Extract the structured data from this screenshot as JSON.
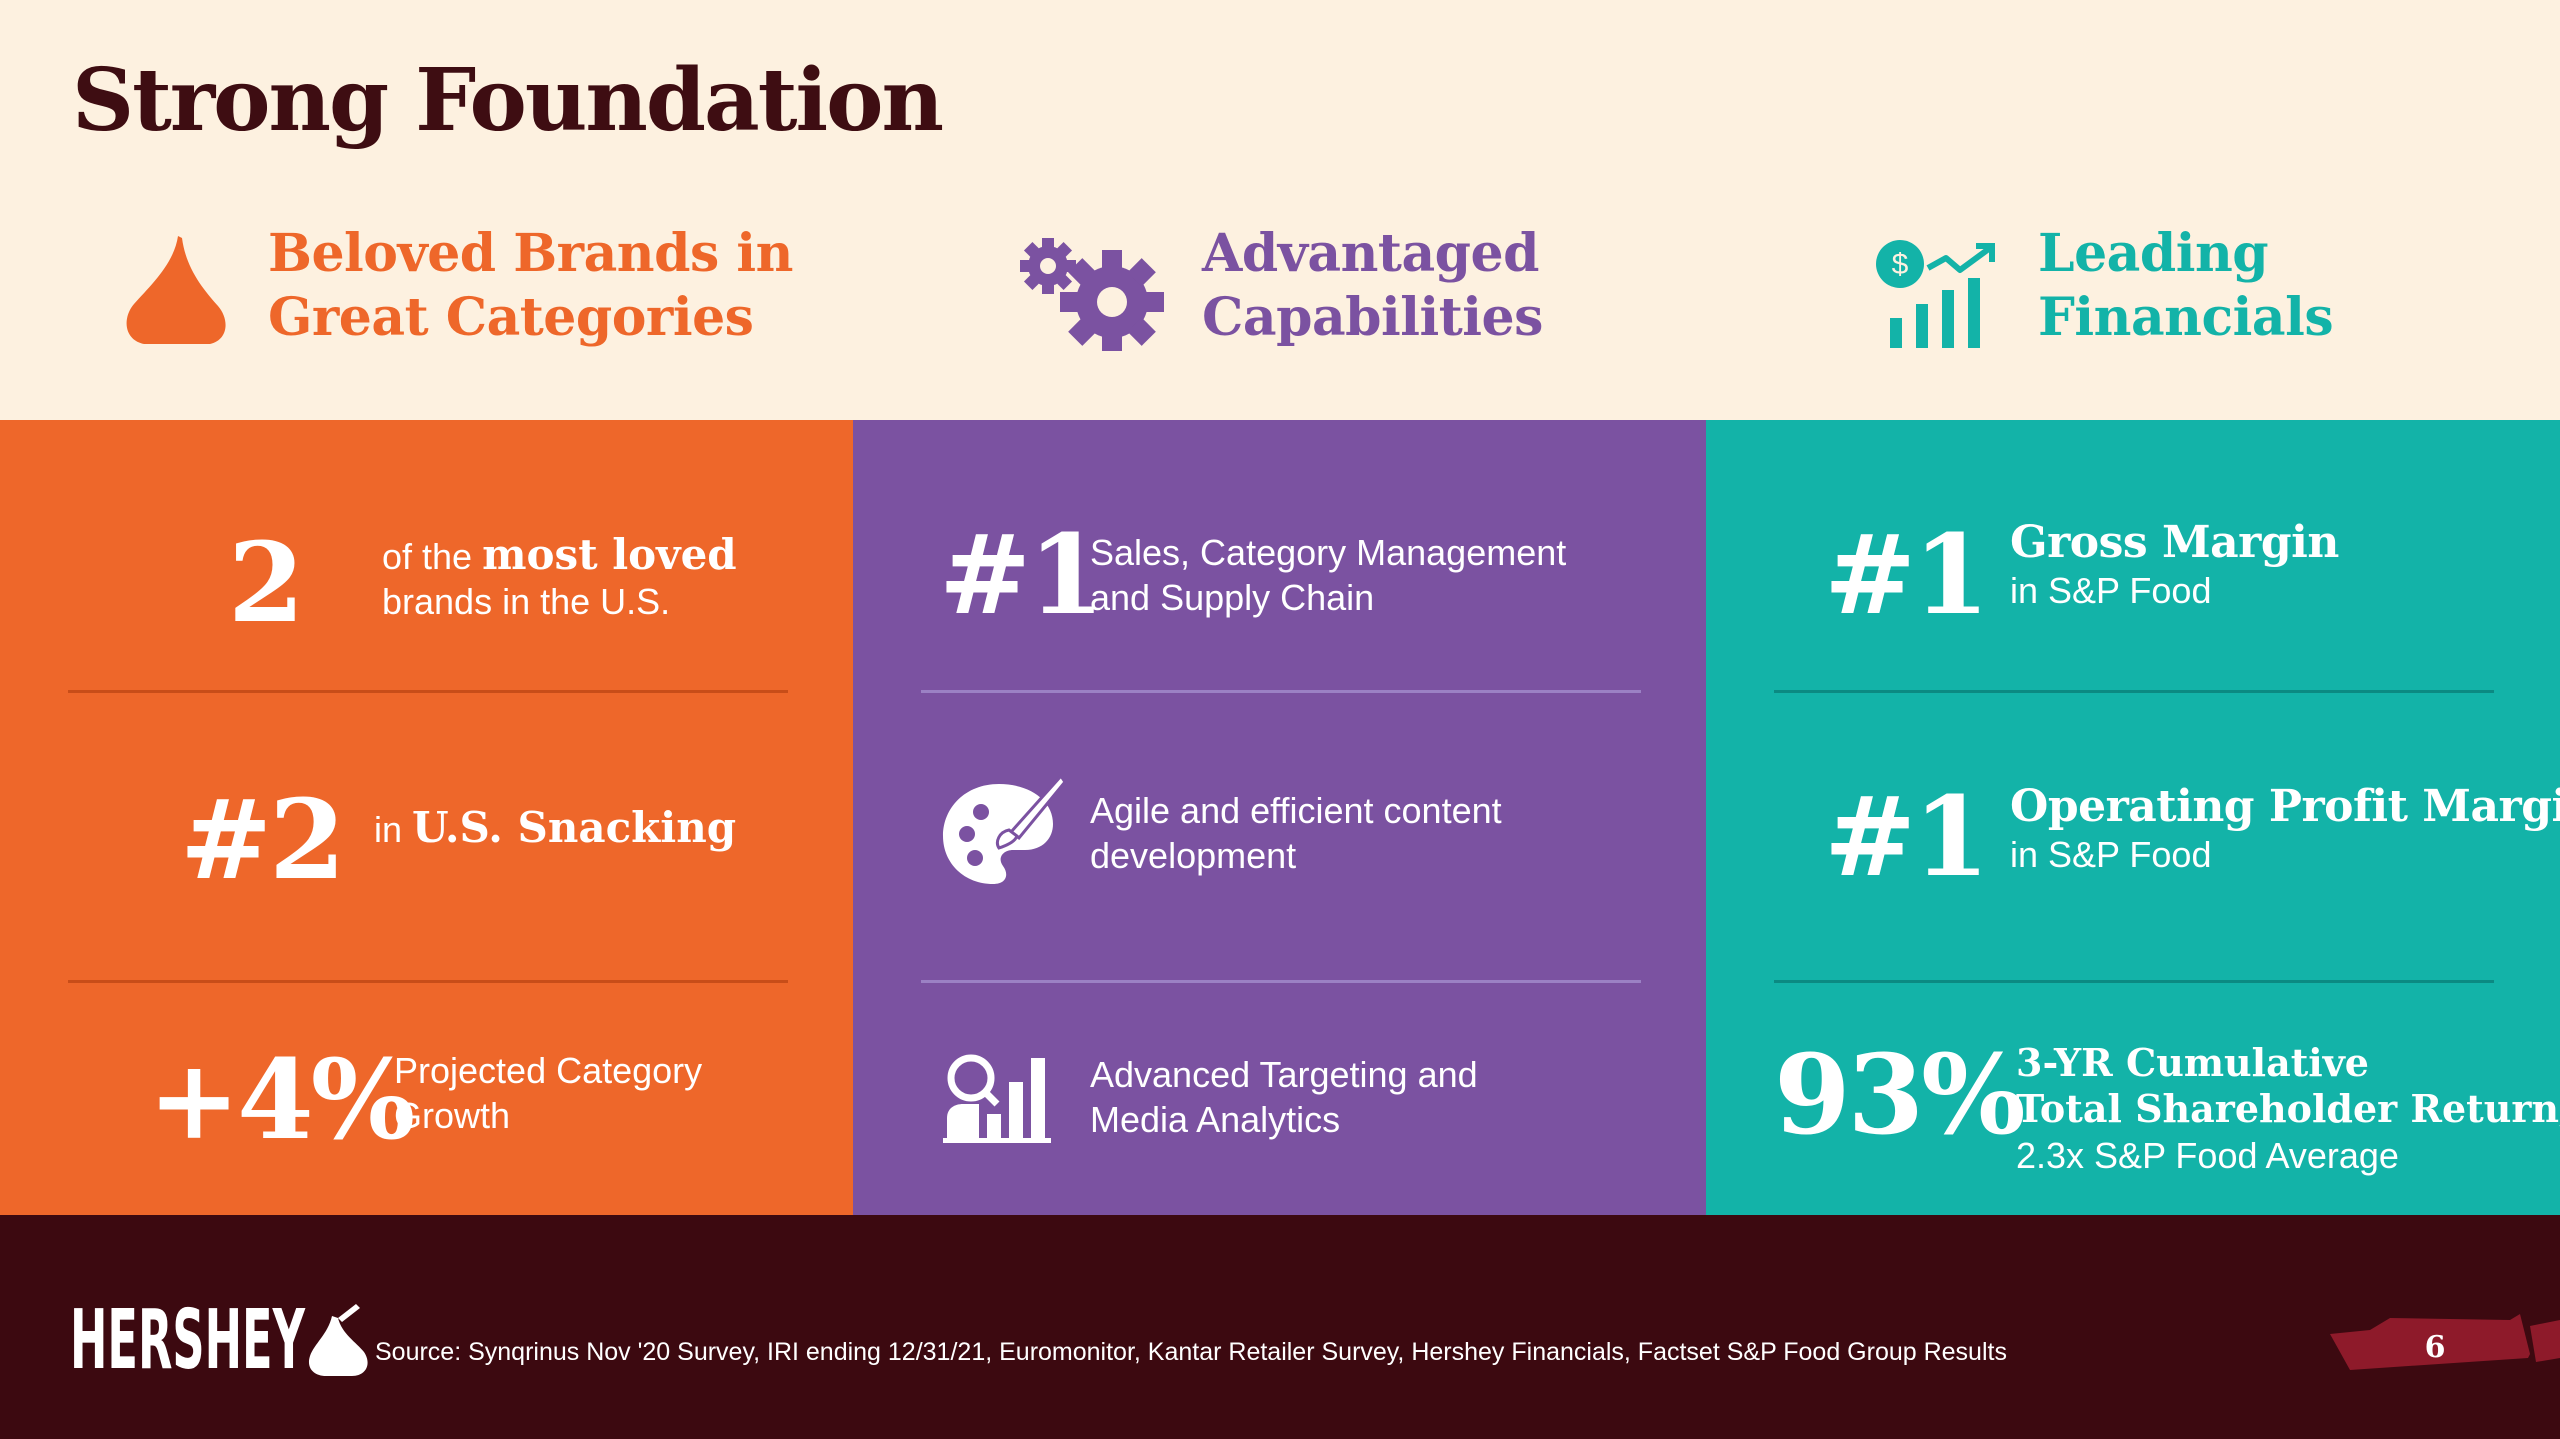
{
  "title": "Strong Foundation",
  "pillars": [
    {
      "line1": "Beloved Brands in",
      "line2": "Great Categories",
      "color": "#ee672a",
      "icon": "kiss-drop-icon"
    },
    {
      "line1": "Advantaged",
      "line2": "Capabilities",
      "color": "#7b52a1",
      "icon": "gears-icon"
    },
    {
      "line1": "Leading",
      "line2": "Financials",
      "color": "#13b3a8",
      "icon": "financial-growth-chart-icon"
    }
  ],
  "brands": {
    "stat1": {
      "big": "2",
      "pre": "of the",
      "bold": "most loved",
      "line2": "brands in the U.S."
    },
    "stat2": {
      "big": "#2",
      "pre": "in",
      "bold": "U.S. Snacking"
    },
    "stat3": {
      "big": "+4%",
      "line1": "Projected Category",
      "line2": "Growth"
    }
  },
  "capabilities": {
    "item1": {
      "big": "#1",
      "line1": "Sales, Category Management",
      "line2": "and Supply Chain"
    },
    "item2": {
      "icon": "paint-palette-icon",
      "line1": "Agile and efficient content",
      "line2": "development"
    },
    "item3": {
      "icon": "analytics-person-icon",
      "line1": "Advanced Targeting and",
      "line2": "Media Analytics"
    }
  },
  "financials": {
    "stat1": {
      "big": "#1",
      "bold": "Gross Margin",
      "sub": "in S&P Food"
    },
    "stat2": {
      "big": "#1",
      "bold": "Operating Profit Margin",
      "sub": "in S&P Food"
    },
    "stat3": {
      "big": "93%",
      "bold1": "3-YR Cumulative",
      "bold2": "Total Shareholder Return,",
      "sub": "2.3x S&P Food Average"
    }
  },
  "footer": {
    "logo": "HERSHEY",
    "source": "Source: Synqrinus Nov '20 Survey, IRI ending 12/31/21, Euromonitor, Kantar Retailer Survey, Hershey Financials,  Factset S&P Food Group Results",
    "page_number": "6"
  },
  "colors": {
    "background": "#fdf1e0",
    "title": "#3e0d12",
    "orange": "#ee672a",
    "purple": "#7b52a1",
    "teal": "#13b3a8",
    "footer": "#3c0910"
  }
}
